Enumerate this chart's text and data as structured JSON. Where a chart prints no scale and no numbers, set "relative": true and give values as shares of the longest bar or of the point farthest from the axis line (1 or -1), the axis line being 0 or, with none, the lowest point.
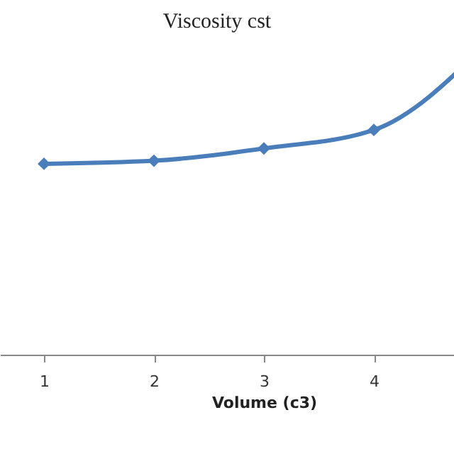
{
  "chart_data": {
    "type": "line",
    "title": "Viscosity cst",
    "xlabel": "Volume (c3)",
    "categories": [
      "1",
      "2",
      "3",
      "4",
      null
    ],
    "series": [
      {
        "color": "#4a7ebb",
        "values": [
          0.62,
          0.63,
          0.67,
          0.73,
          1
        ]
      }
    ],
    "relative": true,
    "marker": "diamond",
    "line_style": "solid",
    "grid": false,
    "legend": false
  }
}
